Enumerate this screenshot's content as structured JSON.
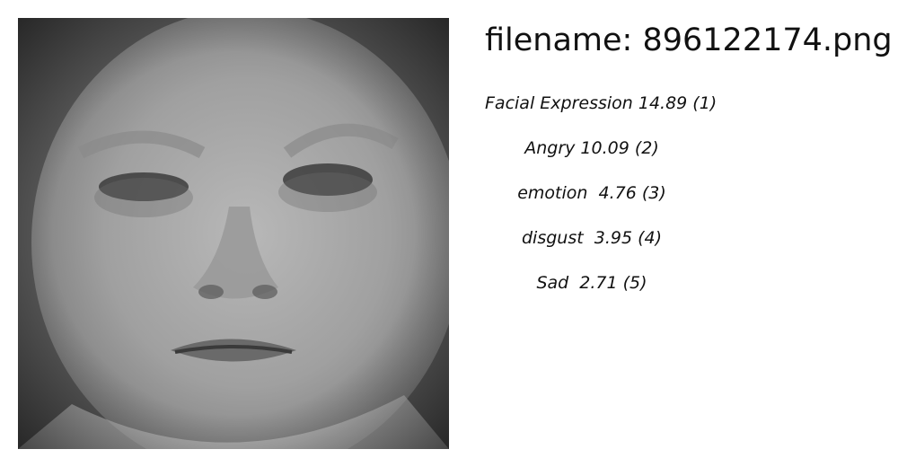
{
  "image": {
    "subject_icon": "child-face-photo",
    "style": "grayscale"
  },
  "filename_label": "filename: 896122174.png",
  "tags": [
    {
      "text": "Facial Expression 14.89 (1)"
    },
    {
      "text": "Angry 10.09 (2)"
    },
    {
      "text": "emotion  4.76 (3)"
    },
    {
      "text": "disgust  3.95 (4)"
    },
    {
      "text": "Sad  2.71 (5)"
    }
  ]
}
